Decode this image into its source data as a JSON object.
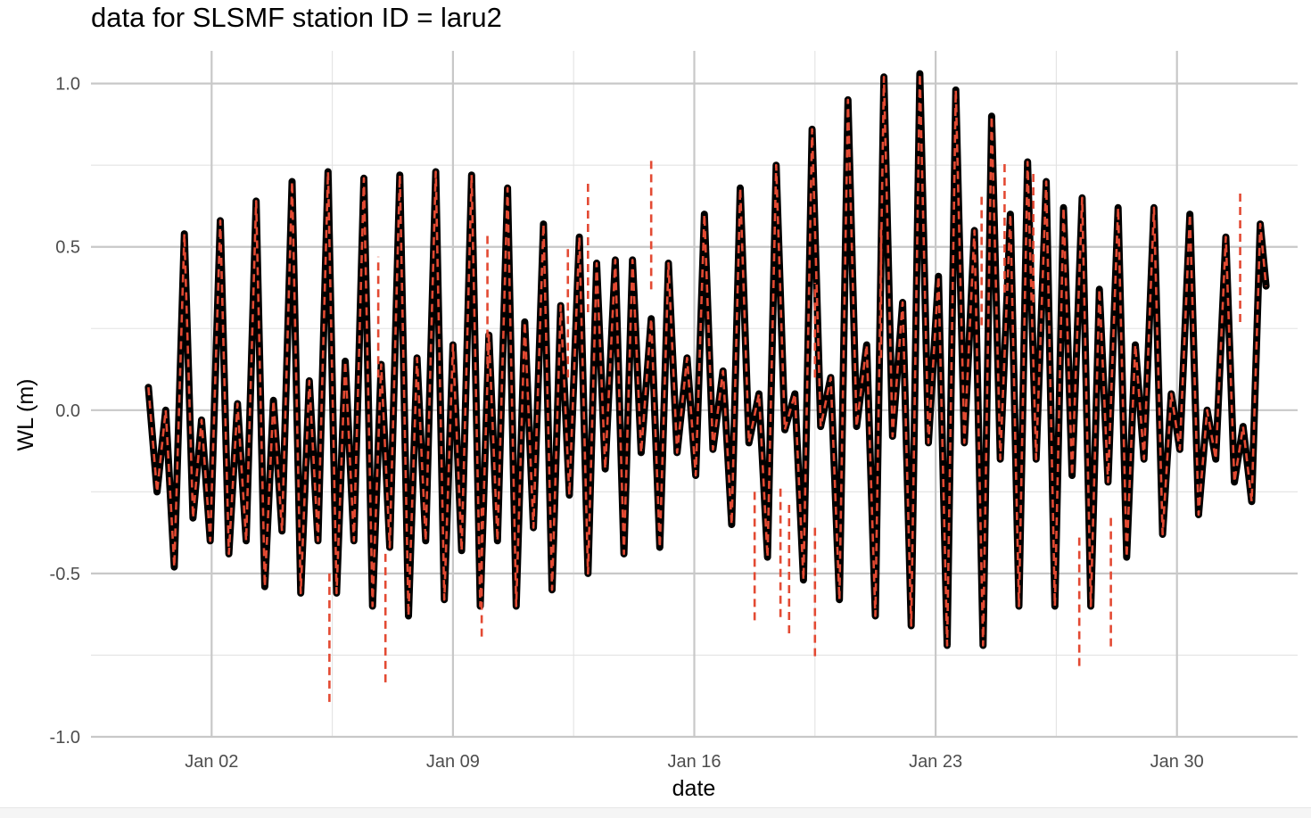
{
  "chart_data": {
    "type": "line",
    "title": "data for SLSMF station ID = laru2",
    "xlabel": "date",
    "ylabel": "WL (m)",
    "ylim": [
      -1.0,
      1.1
    ],
    "xlim": [
      "2023-12-29T12:00",
      "2024-02-02T12:00"
    ],
    "y_ticks": [
      -1.0,
      -0.5,
      0.0,
      0.5,
      1.0
    ],
    "y_tick_labels": [
      "-1.0",
      "-0.5",
      "0.0",
      "0.5",
      "1.0"
    ],
    "x_ticks": [
      "2024-01-02",
      "2024-01-09",
      "2024-01-16",
      "2024-01-23",
      "2024-01-30"
    ],
    "x_tick_labels": [
      "Jan 02",
      "Jan 09",
      "Jan 16",
      "Jan 23",
      "Jan 30"
    ],
    "grid": true,
    "legend": "none",
    "series": [
      {
        "color": "#000000",
        "style": "solid",
        "points": [
          [
            "2023-12-31T04:00",
            0.07
          ],
          [
            "2023-12-31T10:00",
            -0.25
          ],
          [
            "2023-12-31T16:00",
            0.0
          ],
          [
            "2023-12-31T22:00",
            -0.48
          ],
          [
            "2024-01-01T05:00",
            0.54
          ],
          [
            "2024-01-01T11:00",
            -0.33
          ],
          [
            "2024-01-01T17:00",
            -0.03
          ],
          [
            "2024-01-01T23:00",
            -0.4
          ],
          [
            "2024-01-02T06:00",
            0.58
          ],
          [
            "2024-01-02T12:00",
            -0.44
          ],
          [
            "2024-01-02T18:00",
            0.02
          ],
          [
            "2024-01-03T00:00",
            -0.4
          ],
          [
            "2024-01-03T07:00",
            0.64
          ],
          [
            "2024-01-03T13:00",
            -0.54
          ],
          [
            "2024-01-03T19:00",
            0.03
          ],
          [
            "2024-01-04T01:00",
            -0.37
          ],
          [
            "2024-01-04T08:00",
            0.7
          ],
          [
            "2024-01-04T14:00",
            -0.56
          ],
          [
            "2024-01-04T20:00",
            0.09
          ],
          [
            "2024-01-05T02:00",
            -0.4
          ],
          [
            "2024-01-05T09:00",
            0.73
          ],
          [
            "2024-01-05T15:00",
            -0.56
          ],
          [
            "2024-01-05T21:00",
            0.15
          ],
          [
            "2024-01-06T03:00",
            -0.4
          ],
          [
            "2024-01-06T10:00",
            0.71
          ],
          [
            "2024-01-06T16:00",
            -0.6
          ],
          [
            "2024-01-06T22:00",
            0.14
          ],
          [
            "2024-01-07T04:00",
            -0.42
          ],
          [
            "2024-01-07T11:00",
            0.72
          ],
          [
            "2024-01-07T17:00",
            -0.63
          ],
          [
            "2024-01-07T23:00",
            0.16
          ],
          [
            "2024-01-08T05:00",
            -0.4
          ],
          [
            "2024-01-08T12:00",
            0.73
          ],
          [
            "2024-01-08T18:00",
            -0.58
          ],
          [
            "2024-01-09T00:00",
            0.2
          ],
          [
            "2024-01-09T06:00",
            -0.43
          ],
          [
            "2024-01-09T13:00",
            0.72
          ],
          [
            "2024-01-09T19:00",
            -0.6
          ],
          [
            "2024-01-10T01:00",
            0.23
          ],
          [
            "2024-01-10T07:00",
            -0.4
          ],
          [
            "2024-01-10T14:00",
            0.68
          ],
          [
            "2024-01-10T20:00",
            -0.6
          ],
          [
            "2024-01-11T02:00",
            0.27
          ],
          [
            "2024-01-11T08:00",
            -0.36
          ],
          [
            "2024-01-11T15:00",
            0.57
          ],
          [
            "2024-01-11T21:00",
            -0.55
          ],
          [
            "2024-01-12T03:00",
            0.32
          ],
          [
            "2024-01-12T09:00",
            -0.26
          ],
          [
            "2024-01-12T16:00",
            0.53
          ],
          [
            "2024-01-12T22:00",
            -0.5
          ],
          [
            "2024-01-13T04:00",
            0.45
          ],
          [
            "2024-01-13T10:00",
            -0.18
          ],
          [
            "2024-01-13T17:00",
            0.46
          ],
          [
            "2024-01-13T23:00",
            -0.44
          ],
          [
            "2024-01-14T05:00",
            0.46
          ],
          [
            "2024-01-14T11:00",
            -0.13
          ],
          [
            "2024-01-14T18:00",
            0.28
          ],
          [
            "2024-01-15T00:00",
            -0.42
          ],
          [
            "2024-01-15T06:00",
            0.45
          ],
          [
            "2024-01-15T12:00",
            -0.13
          ],
          [
            "2024-01-15T19:00",
            0.16
          ],
          [
            "2024-01-16T01:00",
            -0.2
          ],
          [
            "2024-01-16T07:00",
            0.6
          ],
          [
            "2024-01-16T13:00",
            -0.12
          ],
          [
            "2024-01-16T20:00",
            0.12
          ],
          [
            "2024-01-17T02:00",
            -0.35
          ],
          [
            "2024-01-17T08:00",
            0.68
          ],
          [
            "2024-01-17T14:00",
            -0.1
          ],
          [
            "2024-01-17T21:00",
            0.05
          ],
          [
            "2024-01-18T03:00",
            -0.45
          ],
          [
            "2024-01-18T09:00",
            0.75
          ],
          [
            "2024-01-18T15:00",
            -0.06
          ],
          [
            "2024-01-18T22:00",
            0.05
          ],
          [
            "2024-01-19T04:00",
            -0.52
          ],
          [
            "2024-01-19T10:00",
            0.86
          ],
          [
            "2024-01-19T16:00",
            -0.05
          ],
          [
            "2024-01-19T23:00",
            0.1
          ],
          [
            "2024-01-20T05:00",
            -0.58
          ],
          [
            "2024-01-20T11:00",
            0.95
          ],
          [
            "2024-01-20T17:00",
            -0.05
          ],
          [
            "2024-01-21T00:00",
            0.2
          ],
          [
            "2024-01-21T06:00",
            -0.63
          ],
          [
            "2024-01-21T12:00",
            1.02
          ],
          [
            "2024-01-21T18:00",
            -0.08
          ],
          [
            "2024-01-22T01:00",
            0.33
          ],
          [
            "2024-01-22T07:00",
            -0.66
          ],
          [
            "2024-01-22T13:00",
            1.03
          ],
          [
            "2024-01-22T19:00",
            -0.1
          ],
          [
            "2024-01-23T02:00",
            0.41
          ],
          [
            "2024-01-23T08:00",
            -0.72
          ],
          [
            "2024-01-23T14:00",
            0.98
          ],
          [
            "2024-01-23T20:00",
            -0.1
          ],
          [
            "2024-01-24T03:00",
            0.55
          ],
          [
            "2024-01-24T09:00",
            -0.72
          ],
          [
            "2024-01-24T15:00",
            0.9
          ],
          [
            "2024-01-24T21:00",
            -0.15
          ],
          [
            "2024-01-25T04:00",
            0.6
          ],
          [
            "2024-01-25T10:00",
            -0.6
          ],
          [
            "2024-01-25T16:00",
            0.76
          ],
          [
            "2024-01-25T22:00",
            -0.15
          ],
          [
            "2024-01-26T05:00",
            0.7
          ],
          [
            "2024-01-26T11:00",
            -0.6
          ],
          [
            "2024-01-26T17:00",
            0.62
          ],
          [
            "2024-01-26T23:00",
            -0.2
          ],
          [
            "2024-01-27T06:00",
            0.65
          ],
          [
            "2024-01-27T12:00",
            -0.6
          ],
          [
            "2024-01-27T18:00",
            0.37
          ],
          [
            "2024-01-28T00:00",
            -0.22
          ],
          [
            "2024-01-28T07:00",
            0.62
          ],
          [
            "2024-01-28T13:00",
            -0.45
          ],
          [
            "2024-01-28T19:00",
            0.2
          ],
          [
            "2024-01-29T01:00",
            -0.15
          ],
          [
            "2024-01-29T08:00",
            0.62
          ],
          [
            "2024-01-29T14:00",
            -0.38
          ],
          [
            "2024-01-29T20:00",
            0.05
          ],
          [
            "2024-01-30T02:00",
            -0.12
          ],
          [
            "2024-01-30T09:00",
            0.6
          ],
          [
            "2024-01-30T15:00",
            -0.32
          ],
          [
            "2024-01-30T21:00",
            0.0
          ],
          [
            "2024-01-31T03:00",
            -0.15
          ],
          [
            "2024-01-31T10:00",
            0.53
          ],
          [
            "2024-01-31T16:00",
            -0.22
          ],
          [
            "2024-01-31T22:00",
            -0.05
          ],
          [
            "2024-02-01T04:00",
            -0.28
          ],
          [
            "2024-02-01T10:00",
            0.57
          ],
          [
            "2024-02-01T14:00",
            0.38
          ]
        ]
      },
      {
        "color": "#e34a33",
        "style": "dashed",
        "spikes": [
          [
            "2024-01-05T10:00",
            -0.9
          ],
          [
            "2024-01-06T20:00",
            0.47
          ],
          [
            "2024-01-07T01:00",
            -0.84
          ],
          [
            "2024-01-09T20:00",
            -0.7
          ],
          [
            "2024-01-10T00:00",
            0.54
          ],
          [
            "2024-01-12T08:00",
            0.5
          ],
          [
            "2024-01-12T22:00",
            0.7
          ],
          [
            "2024-01-14T18:00",
            0.77
          ],
          [
            "2024-01-17T18:00",
            -0.65
          ],
          [
            "2024-01-18T12:00",
            -0.64
          ],
          [
            "2024-01-18T18:00",
            -0.69
          ],
          [
            "2024-01-19T12:00",
            0.39
          ],
          [
            "2024-01-19T12:00",
            -0.76
          ],
          [
            "2024-01-21T10:00",
            0.56
          ],
          [
            "2024-01-24T08:00",
            0.66
          ],
          [
            "2024-01-25T00:00",
            0.76
          ],
          [
            "2024-01-25T20:00",
            0.73
          ],
          [
            "2024-01-27T04:00",
            -0.79
          ],
          [
            "2024-01-28T02:00",
            -0.73
          ],
          [
            "2024-01-31T20:00",
            0.67
          ]
        ]
      }
    ]
  }
}
